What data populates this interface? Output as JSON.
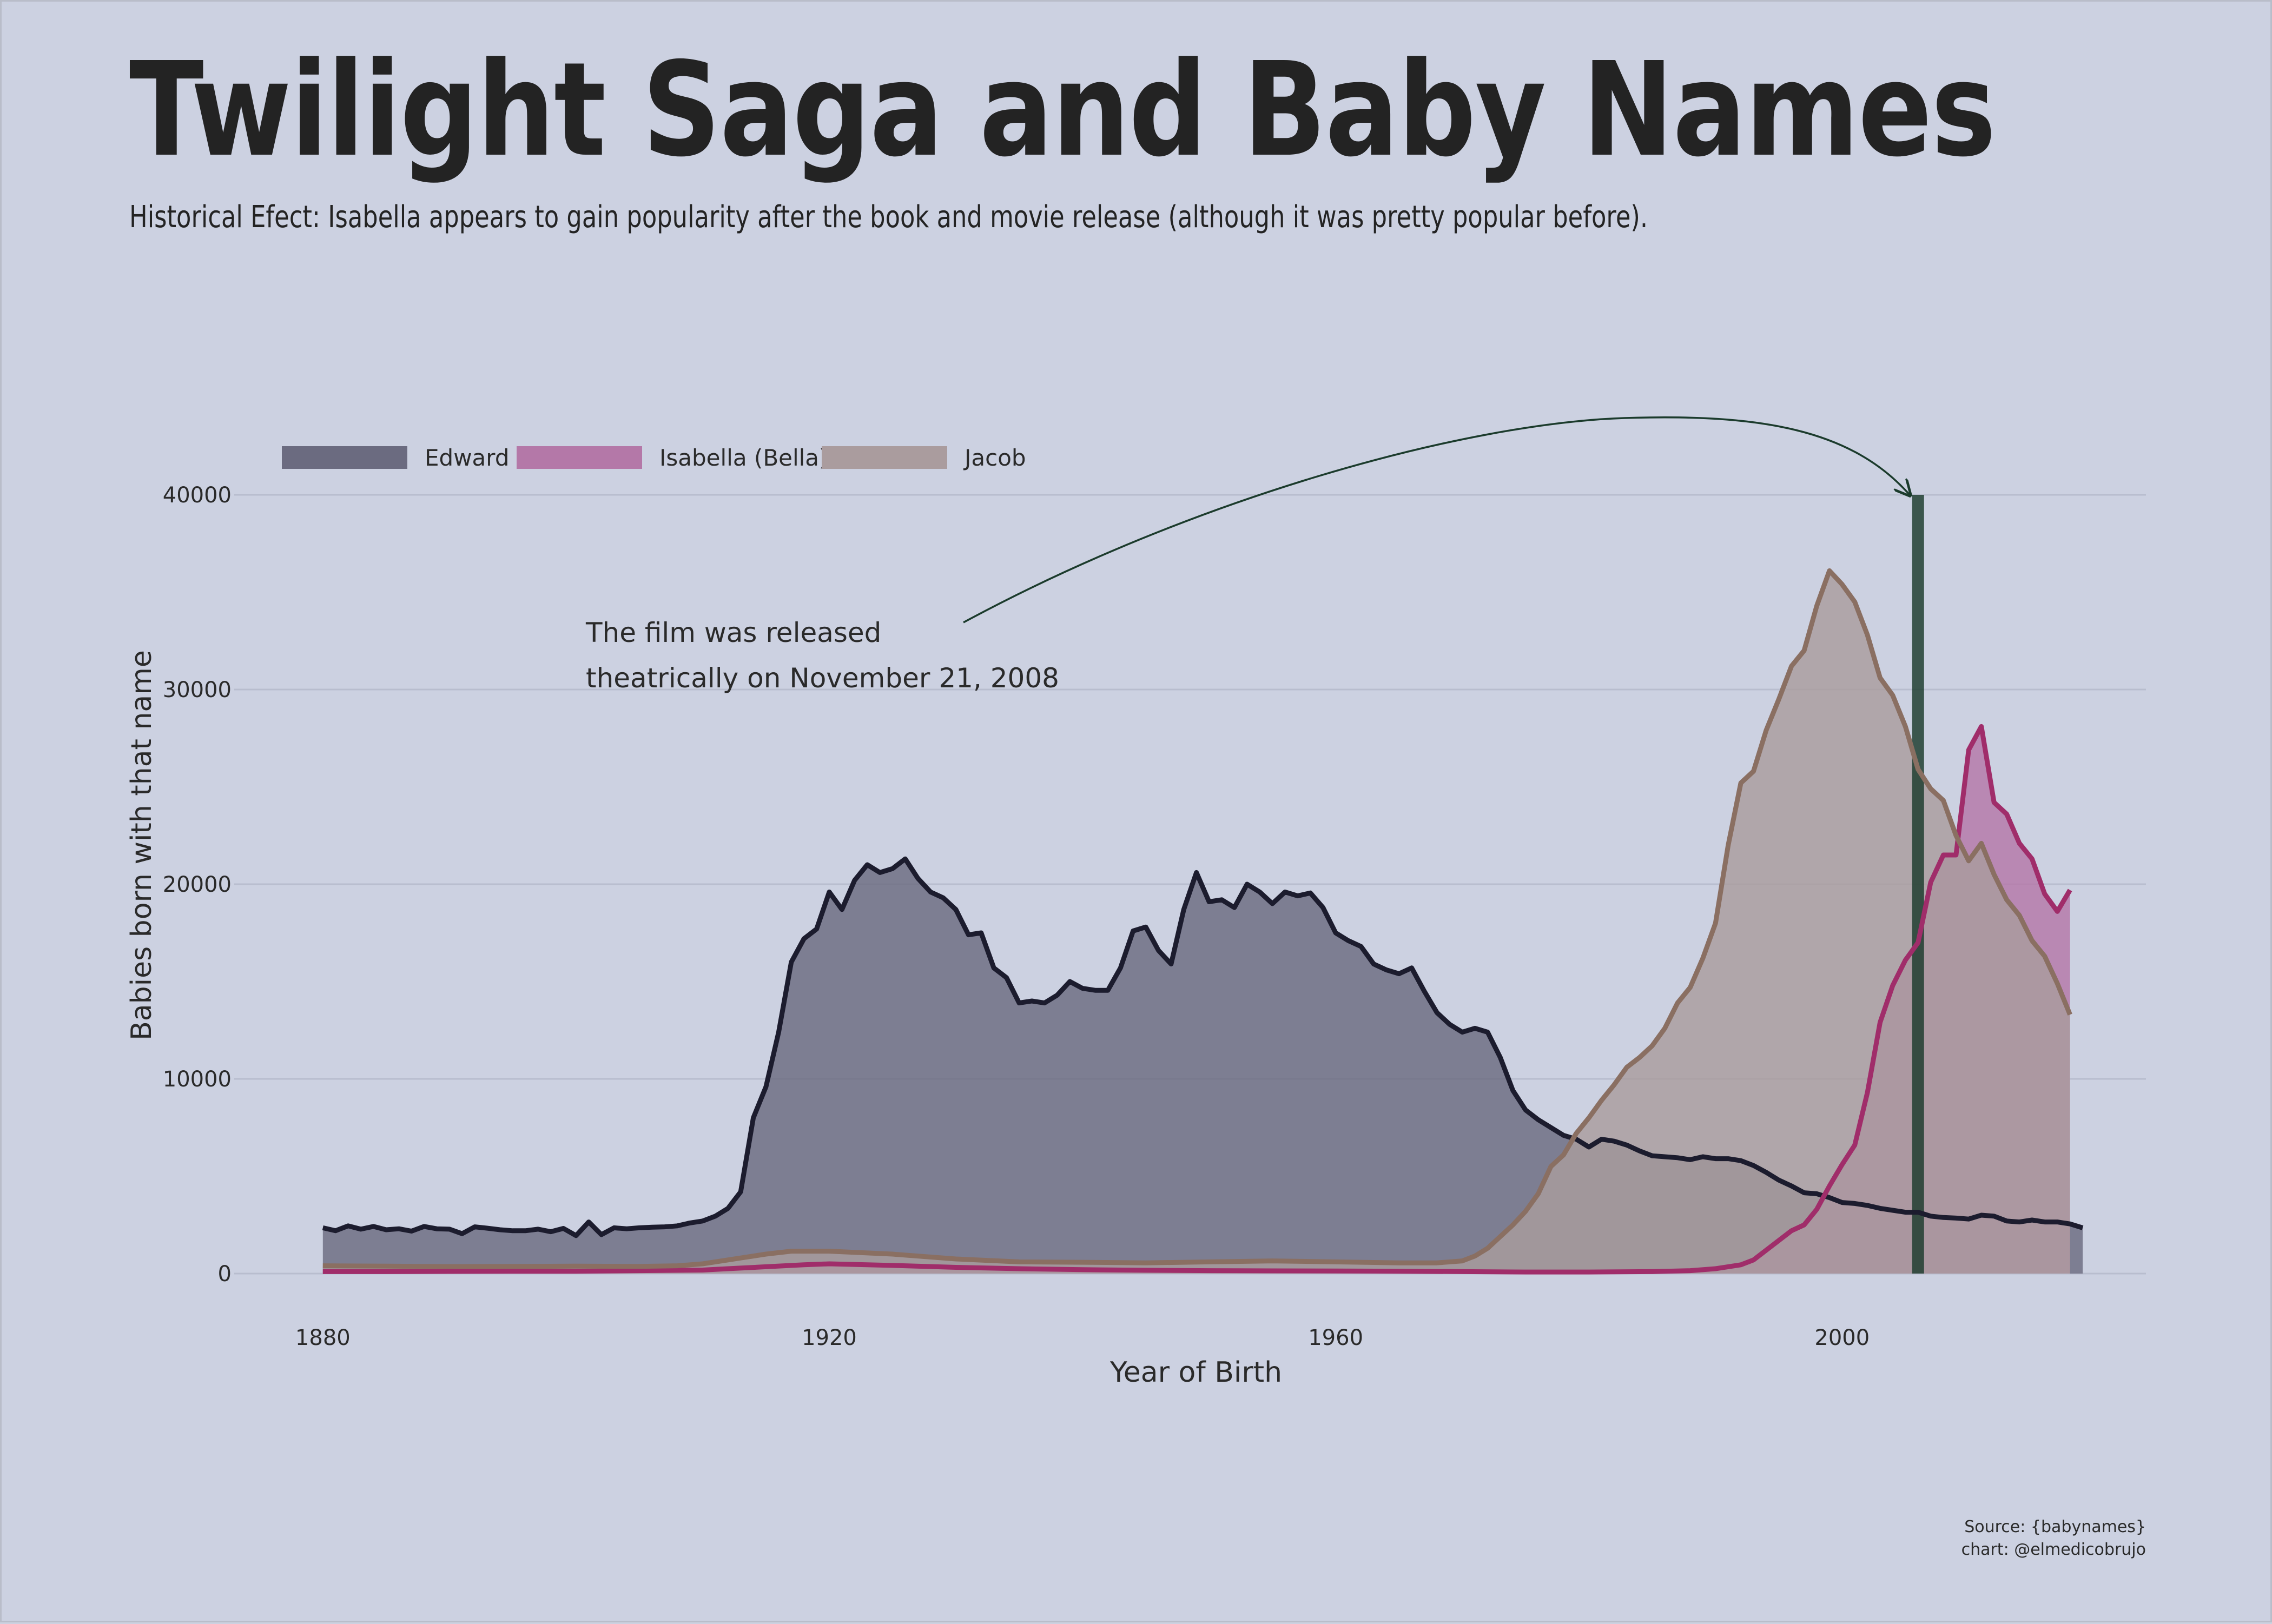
{
  "title": "Twilight Saga and Baby Names",
  "subtitle": "Historical Efect: Isabella appears to gain popularity after the book and movie release (although it was pretty popular before).",
  "annotation": {
    "lines": [
      "The film was released",
      "theatrically on November 21, 2008"
    ],
    "target_x": 2006
  },
  "caption": {
    "source": "Source: {babynames}",
    "credit": "chart: @elmedicobrujo"
  },
  "chart_data": {
    "type": "area",
    "xlabel": "Year of Birth",
    "ylabel": "Babies born with that name",
    "xlim": [
      1873,
      2024
    ],
    "ylim": [
      0,
      40000
    ],
    "xticks": [
      1880,
      1920,
      1960,
      2000
    ],
    "yticks": [
      0,
      10000,
      20000,
      30000,
      40000
    ],
    "grid": true,
    "legend_position": "top-left",
    "vline": {
      "x": 2006,
      "y": 40000,
      "color": "#1b3b2c"
    },
    "series": [
      {
        "name": "Edward",
        "color": "#1c1c2e",
        "fill": "#6b6b80",
        "points": [
          [
            1880,
            2350
          ],
          [
            1881,
            2200
          ],
          [
            1882,
            2450
          ],
          [
            1883,
            2280
          ],
          [
            1884,
            2420
          ],
          [
            1885,
            2250
          ],
          [
            1886,
            2300
          ],
          [
            1887,
            2180
          ],
          [
            1888,
            2420
          ],
          [
            1889,
            2300
          ],
          [
            1890,
            2280
          ],
          [
            1891,
            2050
          ],
          [
            1892,
            2400
          ],
          [
            1893,
            2330
          ],
          [
            1894,
            2250
          ],
          [
            1895,
            2200
          ],
          [
            1896,
            2200
          ],
          [
            1897,
            2280
          ],
          [
            1898,
            2150
          ],
          [
            1899,
            2320
          ],
          [
            1900,
            1950
          ],
          [
            1901,
            2650
          ],
          [
            1902,
            2000
          ],
          [
            1903,
            2350
          ],
          [
            1904,
            2300
          ],
          [
            1905,
            2350
          ],
          [
            1906,
            2380
          ],
          [
            1907,
            2400
          ],
          [
            1908,
            2450
          ],
          [
            1909,
            2600
          ],
          [
            1910,
            2700
          ],
          [
            1911,
            2950
          ],
          [
            1912,
            3350
          ],
          [
            1913,
            4200
          ],
          [
            1914,
            8000
          ],
          [
            1915,
            9600
          ],
          [
            1916,
            12400
          ],
          [
            1917,
            16000
          ],
          [
            1918,
            17200
          ],
          [
            1919,
            17700
          ],
          [
            1920,
            19600
          ],
          [
            1921,
            18700
          ],
          [
            1922,
            20200
          ],
          [
            1923,
            21000
          ],
          [
            1924,
            20600
          ],
          [
            1925,
            20800
          ],
          [
            1926,
            21300
          ],
          [
            1927,
            20300
          ],
          [
            1928,
            19600
          ],
          [
            1929,
            19300
          ],
          [
            1930,
            18700
          ],
          [
            1931,
            17400
          ],
          [
            1932,
            17500
          ],
          [
            1933,
            15700
          ],
          [
            1934,
            15200
          ],
          [
            1935,
            13900
          ],
          [
            1936,
            14000
          ],
          [
            1937,
            13900
          ],
          [
            1938,
            14300
          ],
          [
            1939,
            15000
          ],
          [
            1940,
            14650
          ],
          [
            1941,
            14550
          ],
          [
            1942,
            14550
          ],
          [
            1943,
            15700
          ],
          [
            1944,
            17600
          ],
          [
            1945,
            17800
          ],
          [
            1946,
            16600
          ],
          [
            1947,
            15900
          ],
          [
            1948,
            18700
          ],
          [
            1949,
            20600
          ],
          [
            1950,
            19100
          ],
          [
            1951,
            19200
          ],
          [
            1952,
            18800
          ],
          [
            1953,
            20000
          ],
          [
            1954,
            19600
          ],
          [
            1955,
            19000
          ],
          [
            1956,
            19600
          ],
          [
            1957,
            19400
          ],
          [
            1958,
            19550
          ],
          [
            1959,
            18800
          ],
          [
            1960,
            17500
          ],
          [
            1961,
            17100
          ],
          [
            1962,
            16800
          ],
          [
            1963,
            15900
          ],
          [
            1964,
            15600
          ],
          [
            1965,
            15400
          ],
          [
            1966,
            15700
          ],
          [
            1967,
            14500
          ],
          [
            1968,
            13400
          ],
          [
            1969,
            12800
          ],
          [
            1970,
            12400
          ],
          [
            1971,
            12600
          ],
          [
            1972,
            12400
          ],
          [
            1973,
            11100
          ],
          [
            1974,
            9400
          ],
          [
            1975,
            8400
          ],
          [
            1976,
            7900
          ],
          [
            1977,
            7500
          ],
          [
            1978,
            7100
          ],
          [
            1979,
            6900
          ],
          [
            1980,
            6500
          ],
          [
            1981,
            6900
          ],
          [
            1982,
            6800
          ],
          [
            1983,
            6600
          ],
          [
            1984,
            6300
          ],
          [
            1985,
            6050
          ],
          [
            1986,
            6000
          ],
          [
            1987,
            5950
          ],
          [
            1988,
            5850
          ],
          [
            1989,
            6000
          ],
          [
            1990,
            5900
          ],
          [
            1991,
            5900
          ],
          [
            1992,
            5800
          ],
          [
            1993,
            5550
          ],
          [
            1994,
            5200
          ],
          [
            1995,
            4800
          ],
          [
            1996,
            4500
          ],
          [
            1997,
            4150
          ],
          [
            1998,
            4100
          ],
          [
            1999,
            3900
          ],
          [
            2000,
            3650
          ],
          [
            2001,
            3600
          ],
          [
            2002,
            3500
          ],
          [
            2003,
            3350
          ],
          [
            2004,
            3250
          ],
          [
            2005,
            3150
          ],
          [
            2006,
            3150
          ],
          [
            2007,
            2950
          ],
          [
            2008,
            2880
          ],
          [
            2009,
            2850
          ],
          [
            2010,
            2800
          ],
          [
            2011,
            3000
          ],
          [
            2012,
            2950
          ],
          [
            2013,
            2700
          ],
          [
            2014,
            2650
          ],
          [
            2015,
            2750
          ],
          [
            2016,
            2650
          ],
          [
            2017,
            2650
          ],
          [
            2018,
            2550
          ],
          [
            2019,
            2350
          ]
        ]
      },
      {
        "name": "Isabella (Bella)",
        "color": "#a02d6a",
        "fill": "#b478a8",
        "points": [
          [
            1880,
            100
          ],
          [
            1885,
            100
          ],
          [
            1890,
            110
          ],
          [
            1895,
            120
          ],
          [
            1900,
            120
          ],
          [
            1905,
            150
          ],
          [
            1910,
            180
          ],
          [
            1912,
            250
          ],
          [
            1915,
            350
          ],
          [
            1918,
            450
          ],
          [
            1920,
            500
          ],
          [
            1923,
            450
          ],
          [
            1926,
            400
          ],
          [
            1930,
            320
          ],
          [
            1935,
            250
          ],
          [
            1940,
            200
          ],
          [
            1945,
            170
          ],
          [
            1950,
            150
          ],
          [
            1955,
            140
          ],
          [
            1960,
            130
          ],
          [
            1965,
            120
          ],
          [
            1970,
            100
          ],
          [
            1975,
            80
          ],
          [
            1980,
            80
          ],
          [
            1985,
            100
          ],
          [
            1988,
            150
          ],
          [
            1990,
            250
          ],
          [
            1992,
            450
          ],
          [
            1993,
            700
          ],
          [
            1994,
            1200
          ],
          [
            1995,
            1700
          ],
          [
            1996,
            2200
          ],
          [
            1997,
            2500
          ],
          [
            1998,
            3300
          ],
          [
            1999,
            4500
          ],
          [
            2000,
            5600
          ],
          [
            2001,
            6600
          ],
          [
            2002,
            9300
          ],
          [
            2003,
            12900
          ],
          [
            2004,
            14800
          ],
          [
            2005,
            16100
          ],
          [
            2006,
            17000
          ],
          [
            2007,
            20100
          ],
          [
            2008,
            21500
          ],
          [
            2009,
            21500
          ],
          [
            2010,
            26900
          ],
          [
            2011,
            28100
          ],
          [
            2012,
            24200
          ],
          [
            2013,
            23600
          ],
          [
            2014,
            22100
          ],
          [
            2015,
            21300
          ],
          [
            2016,
            19500
          ],
          [
            2017,
            18600
          ],
          [
            2018,
            19700
          ]
        ]
      },
      {
        "name": "Jacob",
        "color": "#8a6f62",
        "fill": "#aa9c9e",
        "points": [
          [
            1880,
            400
          ],
          [
            1885,
            380
          ],
          [
            1890,
            360
          ],
          [
            1895,
            370
          ],
          [
            1900,
            380
          ],
          [
            1905,
            370
          ],
          [
            1908,
            400
          ],
          [
            1910,
            500
          ],
          [
            1913,
            800
          ],
          [
            1915,
            1000
          ],
          [
            1917,
            1150
          ],
          [
            1920,
            1150
          ],
          [
            1925,
            1000
          ],
          [
            1930,
            750
          ],
          [
            1935,
            600
          ],
          [
            1940,
            580
          ],
          [
            1945,
            550
          ],
          [
            1950,
            600
          ],
          [
            1955,
            650
          ],
          [
            1960,
            600
          ],
          [
            1965,
            550
          ],
          [
            1968,
            550
          ],
          [
            1970,
            650
          ],
          [
            1971,
            900
          ],
          [
            1972,
            1300
          ],
          [
            1973,
            1900
          ],
          [
            1974,
            2500
          ],
          [
            1975,
            3200
          ],
          [
            1976,
            4100
          ],
          [
            1977,
            5500
          ],
          [
            1978,
            6100
          ],
          [
            1979,
            7200
          ],
          [
            1980,
            8000
          ],
          [
            1981,
            8900
          ],
          [
            1982,
            9700
          ],
          [
            1983,
            10600
          ],
          [
            1984,
            11100
          ],
          [
            1985,
            11700
          ],
          [
            1986,
            12600
          ],
          [
            1987,
            13900
          ],
          [
            1988,
            14700
          ],
          [
            1989,
            16200
          ],
          [
            1990,
            18000
          ],
          [
            1991,
            22000
          ],
          [
            1992,
            25200
          ],
          [
            1993,
            25800
          ],
          [
            1994,
            27900
          ],
          [
            1995,
            29500
          ],
          [
            1996,
            31200
          ],
          [
            1997,
            32000
          ],
          [
            1998,
            34300
          ],
          [
            1999,
            36100
          ],
          [
            2000,
            35400
          ],
          [
            2001,
            34500
          ],
          [
            2002,
            32800
          ],
          [
            2003,
            30600
          ],
          [
            2004,
            29700
          ],
          [
            2005,
            28100
          ],
          [
            2006,
            25900
          ],
          [
            2007,
            24900
          ],
          [
            2008,
            24300
          ],
          [
            2009,
            22500
          ],
          [
            2010,
            21200
          ],
          [
            2011,
            22100
          ],
          [
            2012,
            20500
          ],
          [
            2013,
            19200
          ],
          [
            2014,
            18400
          ],
          [
            2015,
            17100
          ],
          [
            2016,
            16300
          ],
          [
            2017,
            14900
          ],
          [
            2018,
            13300
          ]
        ]
      }
    ]
  }
}
